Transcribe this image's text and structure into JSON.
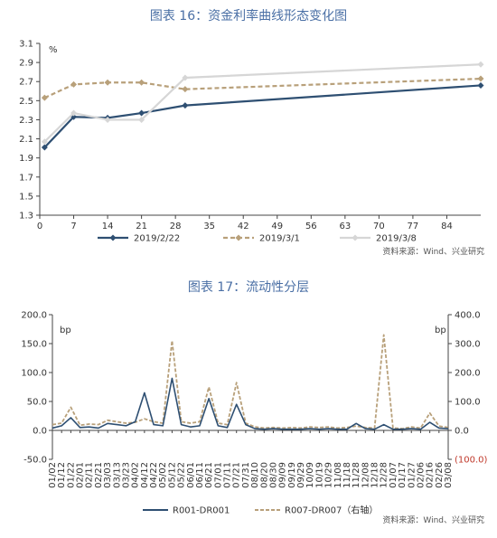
{
  "chart_data": [
    {
      "type": "line",
      "title": "图表 16：资金利率曲线形态变化图",
      "unit_label": "%",
      "x": [
        1,
        7,
        14,
        21,
        30,
        91
      ],
      "x_ticks": [
        "0",
        "7",
        "14",
        "21",
        "28",
        "35",
        "42",
        "49",
        "56",
        "63",
        "70",
        "77",
        "84"
      ],
      "y_ticks": [
        "1.3",
        "1.5",
        "1.7",
        "1.9",
        "2.1",
        "2.3",
        "2.5",
        "2.7",
        "2.9",
        "3.1"
      ],
      "ylim": [
        1.3,
        3.1
      ],
      "xlim": [
        0,
        91
      ],
      "grid": false,
      "legend_position": "bottom",
      "series": [
        {
          "name": "2019/2/22",
          "color": "#2e4f72",
          "dash": "solid",
          "marker": "diamond",
          "values": [
            2.01,
            2.33,
            2.32,
            2.37,
            2.45,
            2.66
          ]
        },
        {
          "name": "2019/3/1",
          "color": "#b8a07a",
          "dash": "dashed",
          "marker": "diamond",
          "values": [
            2.53,
            2.67,
            2.69,
            2.69,
            2.62,
            2.73
          ]
        },
        {
          "name": "2019/3/8",
          "color": "#d6d6d6",
          "dash": "solid",
          "marker": "diamond",
          "values": [
            2.07,
            2.37,
            2.3,
            2.3,
            2.74,
            2.88
          ]
        }
      ],
      "source": "资料来源：Wind、兴业研究"
    },
    {
      "type": "line",
      "title": "图表 17：流动性分层",
      "unit_label_left": "bp",
      "unit_label_right": "bp",
      "categories": [
        "01/02",
        "01/12",
        "01/22",
        "02/01",
        "02/11",
        "02/21",
        "03/03",
        "03/13",
        "03/23",
        "04/02",
        "04/12",
        "04/22",
        "05/02",
        "05/12",
        "05/22",
        "06/01",
        "06/11",
        "06/21",
        "07/01",
        "07/11",
        "07/21",
        "07/31",
        "08/10",
        "08/20",
        "08/30",
        "09/09",
        "09/19",
        "09/29",
        "10/09",
        "10/19",
        "10/29",
        "11/08",
        "11/18",
        "11/28",
        "12/08",
        "12/18",
        "12/28",
        "01/07",
        "01/17",
        "01/27",
        "02/06",
        "02/16",
        "02/26",
        "03/08"
      ],
      "y_ticks_left": [
        "-50.0",
        "0.0",
        "50.0",
        "100.0",
        "150.0",
        "200.0"
      ],
      "y_ticks_right": [
        "(100.0)",
        "0.0",
        "100.0",
        "200.0",
        "300.0",
        "400.0"
      ],
      "ylim_left": [
        -50,
        200
      ],
      "ylim_right": [
        -100,
        400
      ],
      "grid": false,
      "legend_position": "bottom",
      "series": [
        {
          "name": "R001-DR001",
          "axis": "left",
          "color": "#2e4f72",
          "dash": "solid",
          "values": [
            4,
            8,
            22,
            5,
            6,
            4,
            12,
            10,
            8,
            15,
            65,
            10,
            8,
            90,
            10,
            6,
            8,
            55,
            8,
            5,
            45,
            10,
            3,
            2,
            3,
            2,
            2,
            2,
            3,
            2,
            3,
            2,
            2,
            12,
            3,
            2,
            10,
            2,
            2,
            3,
            2,
            14,
            4,
            3
          ]
        },
        {
          "name": "R007-DR007（右轴）",
          "axis": "right",
          "color": "#b8a07a",
          "dash": "dashed",
          "values": [
            20,
            25,
            80,
            18,
            22,
            20,
            35,
            30,
            25,
            28,
            40,
            30,
            25,
            310,
            30,
            25,
            30,
            150,
            25,
            20,
            165,
            25,
            12,
            8,
            10,
            8,
            10,
            8,
            12,
            10,
            12,
            8,
            10,
            15,
            10,
            8,
            330,
            8,
            6,
            12,
            8,
            60,
            15,
            10
          ]
        }
      ],
      "source": "资料来源：Wind、兴业研究"
    }
  ]
}
